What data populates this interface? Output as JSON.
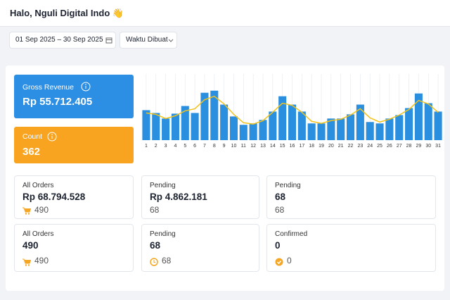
{
  "header": {
    "title": "Halo, Nguli Digital Indo 👋"
  },
  "filters": {
    "date_range": "01 Sep 2025 – 30 Sep 2025",
    "sort": "Waktu Dibuat"
  },
  "kpis": [
    {
      "label": "Gross Revenue",
      "value": "Rp 55.712.405"
    },
    {
      "label": "Count",
      "value": "362"
    }
  ],
  "chart_data": {
    "type": "bar",
    "categories": [
      "1",
      "2",
      "3",
      "4",
      "5",
      "6",
      "7",
      "8",
      "9",
      "10",
      "11",
      "12",
      "13",
      "14",
      "15",
      "16",
      "17",
      "18",
      "19",
      "20",
      "21",
      "22",
      "23",
      "24",
      "25",
      "26",
      "27",
      "28",
      "29",
      "30",
      "31"
    ],
    "series": [
      {
        "color": "#2b8fe0",
        "values": [
          43,
          39,
          31,
          38,
          49,
          39,
          68,
          71,
          51,
          34,
          22,
          24,
          29,
          41,
          63,
          51,
          41,
          24,
          24,
          31,
          31,
          37,
          51,
          26,
          24,
          31,
          36,
          46,
          67,
          53,
          41
        ]
      },
      {
        "color": "#f2c21b",
        "line": true,
        "values": [
          39,
          37,
          31,
          35,
          42,
          45,
          58,
          63,
          52,
          37,
          25,
          23,
          28,
          40,
          53,
          50,
          40,
          27,
          24,
          28,
          30,
          36,
          45,
          32,
          26,
          30,
          36,
          44,
          57,
          52,
          40
        ]
      }
    ],
    "ylim": [
      0,
      95
    ],
    "grid": true
  },
  "stats": [
    {
      "label": "All Orders",
      "value": "Rp 68.794.528",
      "sub": "490",
      "icon": "cart"
    },
    {
      "label": "Pending",
      "value": "Rp 4.862.181",
      "sub": "68"
    },
    {
      "label": "Pending",
      "value": "68",
      "sub": "68"
    },
    {
      "label": "All Orders",
      "value": "490",
      "sub": "490",
      "icon": "cart"
    },
    {
      "label": "Pending",
      "value": "68",
      "sub": "68",
      "icon": "clock"
    },
    {
      "label": "Confirmed",
      "value": "0",
      "sub": "0",
      "icon": "check"
    }
  ]
}
